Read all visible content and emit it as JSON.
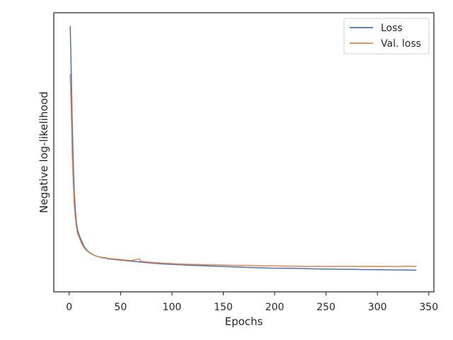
{
  "chart_data": {
    "type": "line",
    "title": "",
    "xlabel": "Epochs",
    "ylabel": "Negative log-likelihood",
    "xlim": [
      -15,
      355
    ],
    "ylim": [
      0,
      1
    ],
    "x_ticks": [
      0,
      50,
      100,
      150,
      200,
      250,
      300,
      350
    ],
    "y_ticks_visible": false,
    "grid": false,
    "legend_position": "top-right",
    "series": [
      {
        "name": "Loss",
        "color": "#4c72b0",
        "x": [
          1,
          2,
          3,
          4,
          5,
          6,
          7,
          8,
          10,
          12,
          15,
          18,
          22,
          26,
          30,
          40,
          50,
          60,
          70,
          80,
          90,
          100,
          120,
          140,
          160,
          180,
          200,
          220,
          240,
          260,
          280,
          300,
          320,
          338
        ],
        "y": [
          0.99,
          0.8,
          0.6,
          0.44,
          0.33,
          0.26,
          0.215,
          0.185,
          0.16,
          0.14,
          0.115,
          0.1,
          0.088,
          0.08,
          0.075,
          0.068,
          0.064,
          0.06,
          0.056,
          0.052,
          0.049,
          0.047,
          0.043,
          0.04,
          0.037,
          0.034,
          0.032,
          0.031,
          0.029,
          0.028,
          0.027,
          0.026,
          0.025,
          0.024
        ]
      },
      {
        "name": "Val. loss",
        "color": "#dd8452",
        "x": [
          1,
          2,
          3,
          4,
          5,
          6,
          7,
          8,
          10,
          12,
          15,
          18,
          22,
          26,
          30,
          40,
          50,
          60,
          68,
          70,
          80,
          90,
          100,
          110,
          120,
          130,
          140,
          150,
          160,
          170,
          180,
          190,
          200,
          210,
          220,
          230,
          240,
          250,
          260,
          270,
          280,
          290,
          300,
          310,
          320,
          330,
          338
        ],
        "y": [
          0.8,
          0.65,
          0.48,
          0.36,
          0.28,
          0.23,
          0.195,
          0.17,
          0.15,
          0.13,
          0.11,
          0.098,
          0.087,
          0.08,
          0.076,
          0.07,
          0.066,
          0.062,
          0.068,
          0.059,
          0.055,
          0.052,
          0.05,
          0.048,
          0.047,
          0.046,
          0.045,
          0.044,
          0.043,
          0.043,
          0.042,
          0.041,
          0.041,
          0.04,
          0.04,
          0.039,
          0.039,
          0.039,
          0.039,
          0.039,
          0.039,
          0.039,
          0.039,
          0.039,
          0.038,
          0.04,
          0.039
        ]
      }
    ]
  }
}
